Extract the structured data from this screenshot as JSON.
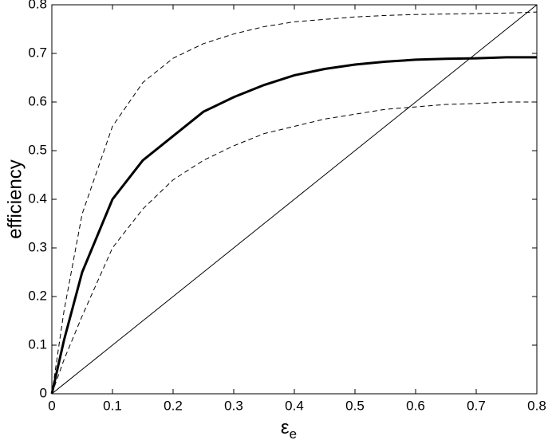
{
  "chart_data": {
    "type": "line",
    "x_label": "ε",
    "x_label_subscript": "e",
    "y_label": "efficiency",
    "x": [
      0,
      0.02,
      0.05,
      0.1,
      0.15,
      0.2,
      0.25,
      0.3,
      0.35,
      0.4,
      0.45,
      0.5,
      0.55,
      0.6,
      0.65,
      0.7,
      0.75,
      0.8
    ],
    "series": [
      {
        "color": "#000000",
        "linestyle": "solid",
        "linewidth": 3,
        "values": [
          0,
          0.11,
          0.25,
          0.4,
          0.48,
          0.53,
          0.58,
          0.61,
          0.635,
          0.655,
          0.668,
          0.677,
          0.683,
          0.687,
          0.689,
          0.69,
          0.692,
          0.692
        ]
      },
      {
        "color": "#000000",
        "linestyle": "dashed",
        "linewidth": 1,
        "values": [
          0,
          0.17,
          0.37,
          0.55,
          0.64,
          0.69,
          0.72,
          0.74,
          0.755,
          0.765,
          0.77,
          0.775,
          0.778,
          0.78,
          0.781,
          0.782,
          0.783,
          0.785
        ]
      },
      {
        "color": "#000000",
        "linestyle": "dashed",
        "linewidth": 1,
        "values": [
          0,
          0.07,
          0.16,
          0.3,
          0.38,
          0.44,
          0.48,
          0.51,
          0.535,
          0.55,
          0.565,
          0.575,
          0.585,
          0.59,
          0.595,
          0.597,
          0.6,
          0.6
        ]
      },
      {
        "color": "#000000",
        "linestyle": "solid",
        "linewidth": 1,
        "values": [
          0,
          0.02,
          0.05,
          0.1,
          0.15,
          0.2,
          0.25,
          0.3,
          0.35,
          0.4,
          0.45,
          0.5,
          0.55,
          0.6,
          0.65,
          0.7,
          0.75,
          0.8
        ]
      }
    ],
    "xlim": [
      0,
      0.8
    ],
    "ylim": [
      0,
      0.8
    ],
    "xticks": [
      0,
      0.1,
      0.2,
      0.3,
      0.4,
      0.5,
      0.6,
      0.7,
      0.8
    ],
    "yticks": [
      0,
      0.1,
      0.2,
      0.3,
      0.4,
      0.5,
      0.6,
      0.7,
      0.8
    ],
    "grid": false
  }
}
